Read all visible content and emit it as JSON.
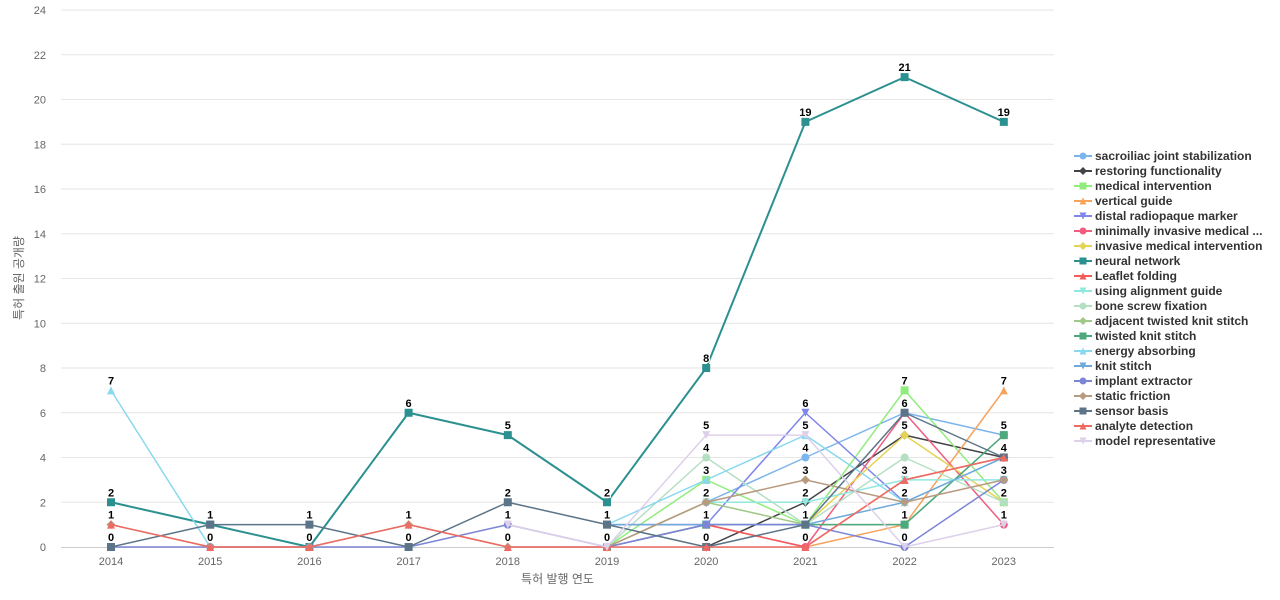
{
  "chart_data": {
    "type": "line",
    "xlabel": "특허 발행 연도",
    "ylabel": "특허 출원 공개량",
    "ylim": [
      0,
      24
    ],
    "yticks": [
      0,
      2,
      4,
      6,
      8,
      10,
      12,
      14,
      16,
      18,
      20,
      22,
      24
    ],
    "grid": "horizontal",
    "legend_position": "right",
    "categories": [
      "2014",
      "2015",
      "2016",
      "2017",
      "2018",
      "2019",
      "2020",
      "2021",
      "2022",
      "2023"
    ],
    "series": [
      {
        "name": "sacroiliac joint stabilization",
        "color": "#7cb5ec",
        "marker": "circle",
        "values": [
          null,
          null,
          null,
          null,
          null,
          null,
          2,
          4,
          6,
          5
        ]
      },
      {
        "name": "restoring functionality",
        "color": "#434348",
        "marker": "diamond",
        "values": [
          null,
          null,
          null,
          null,
          null,
          null,
          0,
          2,
          5,
          4
        ]
      },
      {
        "name": "medical intervention",
        "color": "#90ed7d",
        "marker": "square",
        "values": [
          null,
          null,
          null,
          null,
          null,
          0,
          3,
          1,
          7,
          2
        ]
      },
      {
        "name": "vertical guide",
        "color": "#f7a35c",
        "marker": "triangle",
        "values": [
          null,
          null,
          null,
          null,
          null,
          null,
          null,
          0,
          1,
          7
        ]
      },
      {
        "name": "distal radiopaque marker",
        "color": "#8085e9",
        "marker": "triangle-down",
        "values": [
          null,
          null,
          null,
          null,
          null,
          1,
          1,
          6,
          2,
          4
        ]
      },
      {
        "name": "minimally invasive medical ...",
        "color": "#f15c80",
        "marker": "circle",
        "values": [
          null,
          null,
          null,
          null,
          null,
          0,
          1,
          0,
          6,
          1
        ]
      },
      {
        "name": "invasive medical intervention",
        "color": "#e4d354",
        "marker": "diamond",
        "values": [
          null,
          null,
          null,
          null,
          null,
          null,
          null,
          1,
          5,
          2
        ]
      },
      {
        "name": "neural network",
        "color": "#2b908f",
        "marker": "square",
        "values": [
          2,
          1,
          0,
          6,
          5,
          2,
          8,
          19,
          21,
          19
        ]
      },
      {
        "name": "Leaflet folding",
        "color": "#f45b5b",
        "marker": "triangle",
        "values": [
          null,
          null,
          null,
          null,
          null,
          null,
          1,
          0,
          3,
          4
        ]
      },
      {
        "name": "using alignment guide",
        "color": "#91e8e1",
        "marker": "triangle-down",
        "values": [
          null,
          null,
          null,
          null,
          null,
          0,
          2,
          2,
          3,
          3
        ]
      },
      {
        "name": "bone screw fixation",
        "color": "#b5dfc3",
        "marker": "circle",
        "values": [
          null,
          null,
          null,
          null,
          null,
          0,
          4,
          1,
          4,
          2
        ]
      },
      {
        "name": "adjacent twisted knit stitch",
        "color": "#a0c888",
        "marker": "diamond",
        "values": [
          null,
          null,
          null,
          null,
          null,
          0,
          2,
          1,
          1,
          5
        ]
      },
      {
        "name": "twisted knit stitch",
        "color": "#4ca97e",
        "marker": "square",
        "values": [
          null,
          null,
          null,
          null,
          null,
          0,
          1,
          1,
          1,
          5
        ]
      },
      {
        "name": "energy absorbing",
        "color": "#88d9ee",
        "marker": "triangle",
        "values": [
          7,
          0,
          null,
          null,
          null,
          1,
          3,
          5,
          2,
          4
        ]
      },
      {
        "name": "knit stitch",
        "color": "#6fa9dc",
        "marker": "triangle-down",
        "values": [
          null,
          null,
          null,
          null,
          null,
          1,
          1,
          1,
          2,
          4
        ]
      },
      {
        "name": "implant extractor",
        "color": "#7d85d6",
        "marker": "circle",
        "values": [
          0,
          0,
          0,
          0,
          1,
          0,
          1,
          1,
          0,
          3
        ]
      },
      {
        "name": "static friction",
        "color": "#b89a7f",
        "marker": "diamond",
        "values": [
          1,
          0,
          0,
          1,
          0,
          0,
          2,
          3,
          2,
          3
        ]
      },
      {
        "name": "sensor basis",
        "color": "#5b7488",
        "marker": "square",
        "values": [
          0,
          1,
          1,
          0,
          2,
          1,
          0,
          1,
          6,
          4
        ]
      },
      {
        "name": "analyte detection",
        "color": "#ed6b63",
        "marker": "triangle",
        "values": [
          1,
          0,
          0,
          1,
          0,
          0,
          0,
          0,
          3,
          4
        ]
      },
      {
        "name": "model representative",
        "color": "#ddd0ea",
        "marker": "triangle-down",
        "values": [
          null,
          null,
          null,
          null,
          1,
          0,
          5,
          5,
          0,
          1
        ]
      }
    ],
    "data_labels": [
      {
        "x": "2014",
        "text": "7",
        "y": 7
      },
      {
        "x": "2014",
        "text": "2",
        "y": 2
      },
      {
        "x": "2014",
        "text": "1",
        "y": 1
      },
      {
        "x": "2014",
        "text": "0",
        "y": 0
      },
      {
        "x": "2015",
        "text": "1",
        "y": 1
      },
      {
        "x": "2015",
        "text": "0",
        "y": 0
      },
      {
        "x": "2016",
        "text": "1",
        "y": 1
      },
      {
        "x": "2016",
        "text": "0",
        "y": 0
      },
      {
        "x": "2017",
        "text": "6",
        "y": 6
      },
      {
        "x": "2017",
        "text": "1",
        "y": 1
      },
      {
        "x": "2017",
        "text": "0",
        "y": 0
      },
      {
        "x": "2018",
        "text": "5",
        "y": 5
      },
      {
        "x": "2018",
        "text": "2",
        "y": 2
      },
      {
        "x": "2018",
        "text": "1",
        "y": 1
      },
      {
        "x": "2018",
        "text": "0",
        "y": 0
      },
      {
        "x": "2019",
        "text": "2",
        "y": 2
      },
      {
        "x": "2019",
        "text": "1",
        "y": 1
      },
      {
        "x": "2019",
        "text": "0",
        "y": 0
      },
      {
        "x": "2020",
        "text": "8",
        "y": 8
      },
      {
        "x": "2020",
        "text": "5",
        "y": 5
      },
      {
        "x": "2020",
        "text": "4",
        "y": 4
      },
      {
        "x": "2020",
        "text": "3",
        "y": 3
      },
      {
        "x": "2020",
        "text": "2",
        "y": 2
      },
      {
        "x": "2020",
        "text": "1",
        "y": 1
      },
      {
        "x": "2020",
        "text": "0",
        "y": 0
      },
      {
        "x": "2021",
        "text": "19",
        "y": 19
      },
      {
        "x": "2021",
        "text": "6",
        "y": 6
      },
      {
        "x": "2021",
        "text": "5",
        "y": 5
      },
      {
        "x": "2021",
        "text": "4",
        "y": 4
      },
      {
        "x": "2021",
        "text": "3",
        "y": 3
      },
      {
        "x": "2021",
        "text": "2",
        "y": 2
      },
      {
        "x": "2021",
        "text": "1",
        "y": 1
      },
      {
        "x": "2021",
        "text": "0",
        "y": 0
      },
      {
        "x": "2022",
        "text": "21",
        "y": 21
      },
      {
        "x": "2022",
        "text": "7",
        "y": 7
      },
      {
        "x": "2022",
        "text": "6",
        "y": 6
      },
      {
        "x": "2022",
        "text": "5",
        "y": 5
      },
      {
        "x": "2022",
        "text": "3",
        "y": 3
      },
      {
        "x": "2022",
        "text": "2",
        "y": 2
      },
      {
        "x": "2022",
        "text": "1",
        "y": 1
      },
      {
        "x": "2022",
        "text": "0",
        "y": 0
      },
      {
        "x": "2023",
        "text": "19",
        "y": 19
      },
      {
        "x": "2023",
        "text": "7",
        "y": 7
      },
      {
        "x": "2023",
        "text": "5",
        "y": 5
      },
      {
        "x": "2023",
        "text": "4",
        "y": 4
      },
      {
        "x": "2023",
        "text": "3",
        "y": 3
      },
      {
        "x": "2023",
        "text": "2",
        "y": 2
      },
      {
        "x": "2023",
        "text": "1",
        "y": 1
      }
    ]
  }
}
